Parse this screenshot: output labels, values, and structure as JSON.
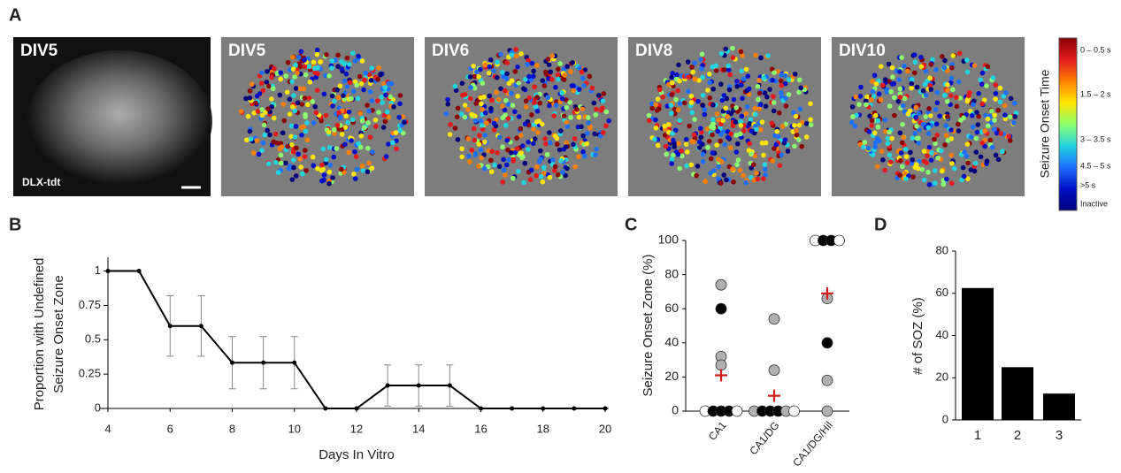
{
  "panel_labels": [
    "A",
    "B",
    "C",
    "D"
  ],
  "panel_a": {
    "images": [
      {
        "label": "DIV5",
        "caption": "DLX-tdt"
      },
      {
        "label": "DIV5"
      },
      {
        "label": "DIV6"
      },
      {
        "label": "DIV8"
      },
      {
        "label": "DIV10"
      }
    ],
    "colorbar": {
      "title": "Seizure Onset Time",
      "labels": [
        "0 – 0.5 s",
        "1.5 – 2 s",
        "3 – 3.5 s",
        "4.5 – 5 s",
        ">5 s",
        "Inactive"
      ],
      "colors": [
        "#8b0000",
        "#e31a1c",
        "#ff7f00",
        "#ffe600",
        "#8cff6e",
        "#22d4e0",
        "#1e6fff",
        "#0010c8",
        "#00007a"
      ]
    }
  },
  "chart_data": [
    {
      "type": "line",
      "xlabel": "Days In Vitro",
      "ylabel": [
        "Proportion with Undefined",
        "Seizure Onset Zone"
      ],
      "x": [
        4,
        5,
        6,
        7,
        8,
        9,
        10,
        11,
        12,
        13,
        14,
        15,
        16,
        17,
        18,
        19,
        20
      ],
      "series": [
        {
          "color": "#000000",
          "values": [
            1,
            1,
            0.6,
            0.6,
            0.333,
            0.333,
            0.333,
            0,
            0,
            0.167,
            0.167,
            0.167,
            0,
            0,
            0,
            0,
            0
          ],
          "errors": [
            null,
            null,
            0.22,
            0.22,
            0.19,
            0.19,
            0.19,
            null,
            null,
            0.15,
            0.15,
            0.15,
            null,
            null,
            null,
            null,
            null
          ]
        }
      ],
      "xlim": [
        4,
        20
      ],
      "ylim": [
        0,
        1.1
      ],
      "xticks": [
        4,
        6,
        8,
        10,
        12,
        14,
        16,
        18,
        20
      ],
      "yticks": [
        0,
        0.25,
        0.5,
        0.75,
        1
      ]
    },
    {
      "type": "strip",
      "ylabel": "Seizure Onset Zone (%)",
      "categories": [
        "CA1",
        "CA1/DG",
        "CA1/DG/Hil"
      ],
      "points": [
        {
          "category": 0,
          "value": 74,
          "color": "#b0b0b0"
        },
        {
          "category": 0,
          "value": 60,
          "color": "#000000"
        },
        {
          "category": 0,
          "value": 32,
          "color": "#b0b0b0"
        },
        {
          "category": 0,
          "value": 27,
          "color": "#b0b0b0"
        },
        {
          "category": 0,
          "value": 0,
          "color": "#ffffff"
        },
        {
          "category": 0,
          "value": 0,
          "color": "#000000"
        },
        {
          "category": 0,
          "value": 0,
          "color": "#000000"
        },
        {
          "category": 0,
          "value": 0,
          "color": "#000000"
        },
        {
          "category": 0,
          "value": 0,
          "color": "#ffffff"
        },
        {
          "category": 1,
          "value": 54,
          "color": "#b0b0b0"
        },
        {
          "category": 1,
          "value": 24,
          "color": "#b0b0b0"
        },
        {
          "category": 1,
          "value": 0,
          "color": "#b0b0b0"
        },
        {
          "category": 1,
          "value": 0,
          "color": "#000000"
        },
        {
          "category": 1,
          "value": 0,
          "color": "#000000"
        },
        {
          "category": 1,
          "value": 0,
          "color": "#000000"
        },
        {
          "category": 1,
          "value": 0,
          "color": "#b0b0b0"
        },
        {
          "category": 1,
          "value": 0,
          "color": "#ffffff"
        },
        {
          "category": 2,
          "value": 100,
          "color": "#ffffff"
        },
        {
          "category": 2,
          "value": 100,
          "color": "#000000"
        },
        {
          "category": 2,
          "value": 100,
          "color": "#000000"
        },
        {
          "category": 2,
          "value": 100,
          "color": "#ffffff"
        },
        {
          "category": 2,
          "value": 66,
          "color": "#b0b0b0"
        },
        {
          "category": 2,
          "value": 40,
          "color": "#000000"
        },
        {
          "category": 2,
          "value": 18,
          "color": "#b0b0b0"
        },
        {
          "category": 2,
          "value": 0,
          "color": "#b0b0b0"
        }
      ],
      "means": {
        "color": "#d01c1c",
        "values": [
          21,
          9,
          69
        ]
      },
      "ylim": [
        0,
        100
      ],
      "yticks": [
        0,
        20,
        40,
        60,
        80,
        100
      ]
    },
    {
      "type": "bar",
      "ylabel": "# of SOZ (%)",
      "categories": [
        "1",
        "2",
        "3"
      ],
      "values": [
        62.5,
        25,
        12.5
      ],
      "color": "#000000",
      "ylim": [
        0,
        80
      ],
      "yticks": [
        0,
        20,
        40,
        60,
        80
      ]
    }
  ]
}
